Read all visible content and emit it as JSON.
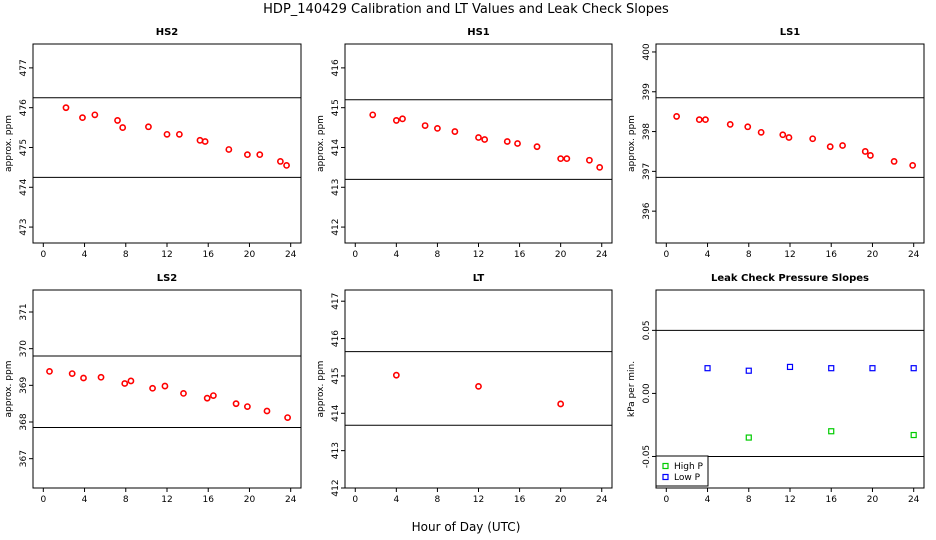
{
  "title": "HDP_140429  Calibration and LT Values and Leak Check Slopes",
  "xlabel": "Hour of Day (UTC)",
  "colors": {
    "cal": "#ff0000",
    "high": "#00cc00",
    "low": "#0000ff",
    "line": "#000000"
  },
  "chart_data": [
    {
      "type": "scatter",
      "title": "HS2",
      "xlabel": "",
      "ylabel": "approx. ppm",
      "xlim": [
        -1,
        25
      ],
      "ylim": [
        472.6,
        477.6
      ],
      "xticks": [
        0,
        4,
        8,
        12,
        16,
        20,
        24
      ],
      "yticks": [
        473,
        474,
        475,
        476,
        477
      ],
      "hlines": [
        476.25,
        474.25
      ],
      "marker": "circle",
      "series": [
        {
          "color": "#ff0000",
          "x": [
            2.2,
            3.8,
            5,
            7.2,
            7.7,
            10.2,
            12,
            13.2,
            15.2,
            15.7,
            18,
            19.8,
            21,
            23,
            23.6
          ],
          "y": [
            476.0,
            475.75,
            475.82,
            475.68,
            475.5,
            475.52,
            475.33,
            475.33,
            475.18,
            475.15,
            474.95,
            474.82,
            474.82,
            474.65,
            474.55
          ]
        }
      ]
    },
    {
      "type": "scatter",
      "title": "HS1",
      "xlabel": "",
      "ylabel": "approx. ppm",
      "xlim": [
        -1,
        25
      ],
      "ylim": [
        411.6,
        416.6
      ],
      "xticks": [
        0,
        4,
        8,
        12,
        16,
        20,
        24
      ],
      "yticks": [
        412,
        413,
        414,
        415,
        416
      ],
      "hlines": [
        415.2,
        413.2
      ],
      "marker": "circle",
      "series": [
        {
          "color": "#ff0000",
          "x": [
            1.7,
            4,
            4.6,
            6.8,
            8,
            9.7,
            12,
            12.6,
            14.8,
            15.8,
            17.7,
            20,
            20.6,
            22.8,
            23.8
          ],
          "y": [
            414.82,
            414.68,
            414.72,
            414.55,
            414.48,
            414.4,
            414.25,
            414.2,
            414.15,
            414.1,
            414.02,
            413.72,
            413.72,
            413.68,
            413.5
          ]
        }
      ]
    },
    {
      "type": "scatter",
      "title": "LS1",
      "xlabel": "",
      "ylabel": "approx. ppm",
      "xlim": [
        -1,
        25
      ],
      "ylim": [
        395.2,
        400.2
      ],
      "xticks": [
        0,
        4,
        8,
        12,
        16,
        20,
        24
      ],
      "yticks": [
        396,
        397,
        398,
        399,
        400
      ],
      "hlines": [
        398.85,
        396.85
      ],
      "marker": "circle",
      "series": [
        {
          "color": "#ff0000",
          "x": [
            1,
            3.2,
            3.8,
            6.2,
            7.9,
            9.2,
            11.3,
            11.9,
            14.2,
            15.9,
            17.1,
            19.3,
            19.8,
            22.1,
            23.9
          ],
          "y": [
            398.38,
            398.3,
            398.3,
            398.18,
            398.12,
            397.98,
            397.92,
            397.85,
            397.82,
            397.62,
            397.65,
            397.5,
            397.4,
            397.25,
            397.15
          ]
        }
      ]
    },
    {
      "type": "scatter",
      "title": "LS2",
      "xlabel": "",
      "ylabel": "approx. ppm",
      "xlim": [
        -1,
        25
      ],
      "ylim": [
        366.2,
        371.6
      ],
      "xticks": [
        0,
        4,
        8,
        12,
        16,
        20,
        24
      ],
      "yticks": [
        367,
        368,
        369,
        370,
        371
      ],
      "hlines": [
        369.8,
        367.85
      ],
      "marker": "circle",
      "series": [
        {
          "color": "#ff0000",
          "x": [
            0.6,
            2.8,
            3.9,
            5.6,
            7.9,
            8.5,
            10.6,
            11.8,
            13.6,
            15.9,
            16.5,
            18.7,
            19.8,
            21.7,
            23.7
          ],
          "y": [
            369.38,
            369.32,
            369.2,
            369.22,
            369.05,
            369.12,
            368.92,
            368.98,
            368.78,
            368.65,
            368.72,
            368.5,
            368.42,
            368.3,
            368.12
          ]
        }
      ]
    },
    {
      "type": "scatter",
      "title": "LT",
      "xlabel": "",
      "ylabel": "approx. ppm",
      "xlim": [
        -1,
        25
      ],
      "ylim": [
        412,
        417.3
      ],
      "xticks": [
        0,
        4,
        8,
        12,
        16,
        20,
        24
      ],
      "yticks": [
        412,
        413,
        414,
        415,
        416,
        417
      ],
      "hlines": [
        415.65,
        413.68
      ],
      "marker": "circle",
      "series": [
        {
          "color": "#ff0000",
          "x": [
            4,
            12,
            20
          ],
          "y": [
            415.02,
            414.72,
            414.25
          ]
        }
      ]
    },
    {
      "type": "scatter",
      "title": "Leak Check Pressure Slopes",
      "xlabel": "",
      "ylabel": "kPa per min.",
      "xlim": [
        -1,
        25
      ],
      "ylim": [
        -0.075,
        0.082
      ],
      "xticks": [
        0,
        4,
        8,
        12,
        16,
        20,
        24
      ],
      "yticks": [
        -0.05,
        0.0,
        0.05
      ],
      "yticklabels": [
        "-0.05",
        "0.00",
        "0.05"
      ],
      "hlines": [
        0.05,
        -0.05
      ],
      "marker": "square",
      "legend": {
        "position": "bottom-left"
      },
      "series": [
        {
          "name": "High P",
          "color": "#00cc00",
          "x": [
            8,
            16,
            24
          ],
          "y": [
            -0.035,
            -0.03,
            -0.033
          ]
        },
        {
          "name": "Low P",
          "color": "#0000ff",
          "x": [
            4,
            8,
            12,
            16,
            20,
            24
          ],
          "y": [
            0.02,
            0.018,
            0.021,
            0.02,
            0.02,
            0.02
          ]
        }
      ]
    }
  ]
}
